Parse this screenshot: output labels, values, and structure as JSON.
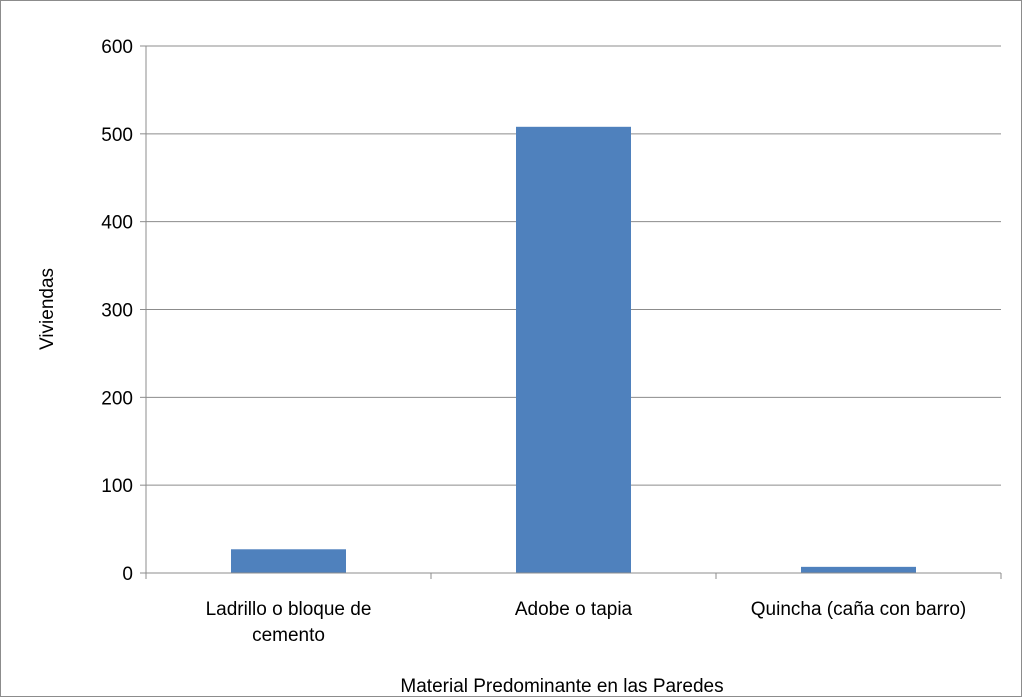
{
  "chart_data": {
    "type": "bar",
    "title": "",
    "xlabel": "Material Predominante en las Paredes",
    "ylabel": "Viviendas",
    "categories": [
      [
        "Ladrillo o bloque de",
        "cemento"
      ],
      [
        "Adobe o tapia"
      ],
      [
        "Quincha (caña con barro)"
      ]
    ],
    "values": [
      27,
      508,
      7
    ],
    "ylim": [
      0,
      600
    ],
    "yticks": [
      0,
      100,
      200,
      300,
      400,
      500,
      600
    ],
    "grid": true,
    "legend": "none",
    "colors": {
      "bar": "#4f81bd",
      "grid": "#8c8c8c",
      "axis": "#8c8c8c",
      "border": "#8c8c8c",
      "text": "#000000"
    }
  }
}
